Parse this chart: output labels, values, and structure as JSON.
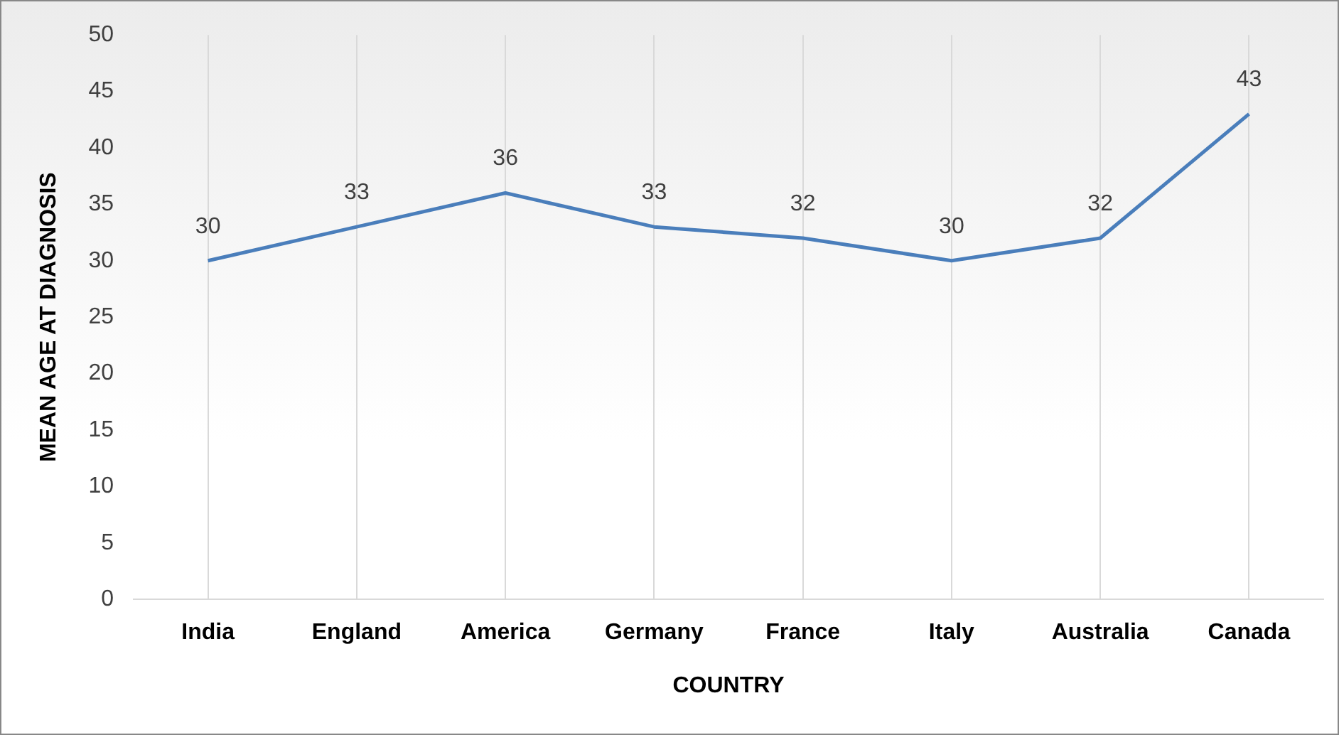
{
  "chart_data": {
    "type": "line",
    "xlabel": "COUNTRY",
    "ylabel": "MEAN AGE AT DIAGNOSIS",
    "categories": [
      "India",
      "England",
      "America",
      "Germany",
      "France",
      "Italy",
      "Australia",
      "Canada"
    ],
    "series": [
      {
        "color": "#4a7ebb",
        "values": [
          30,
          33,
          36,
          33,
          32,
          30,
          32,
          43
        ]
      }
    ],
    "ylim": [
      0,
      50
    ],
    "yticks": [
      0,
      5,
      10,
      15,
      20,
      25,
      30,
      35,
      40,
      45,
      50
    ],
    "grid": "x",
    "legend": false,
    "marker": "none",
    "line_style": "solid",
    "data_labels": true
  }
}
